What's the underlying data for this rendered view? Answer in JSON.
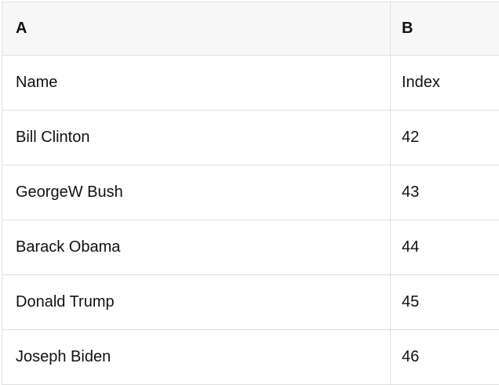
{
  "table": {
    "columns": [
      {
        "label": "A"
      },
      {
        "label": "B"
      }
    ],
    "rows": [
      {
        "a": "Name",
        "b": "Index"
      },
      {
        "a": "Bill Clinton",
        "b": "42"
      },
      {
        "a": "GeorgeW Bush",
        "b": "43"
      },
      {
        "a": "Barack Obama",
        "b": "44"
      },
      {
        "a": "Donald Trump",
        "b": "45"
      },
      {
        "a": "Joseph Biden",
        "b": "46"
      }
    ],
    "colors": {
      "header_bg": "#f7f7f7",
      "grid_border": "#e0e0e0",
      "text": "#111111",
      "row_bg": "#ffffff"
    }
  }
}
